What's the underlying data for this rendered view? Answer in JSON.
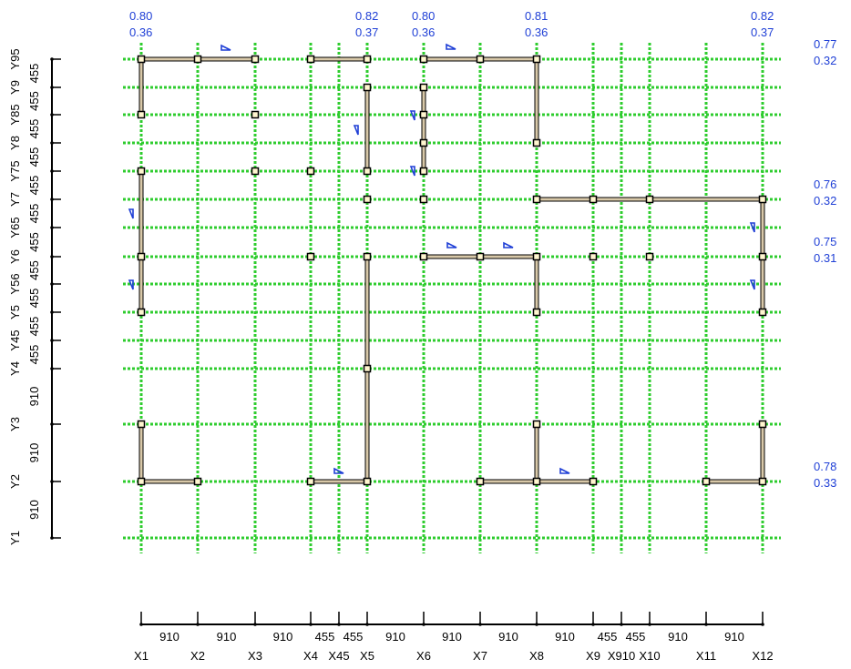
{
  "colors": {
    "grid": "#2ecc2e",
    "wall_fill": "#d8c8a8",
    "wall_edge": "#000000",
    "node_fill": "#fff6d0",
    "ratio_text": "#1f3fd6",
    "marker": "#1f3fd6"
  },
  "x_axis": {
    "labels": [
      "X1",
      "X2",
      "X3",
      "X4",
      "X45",
      "X5",
      "X6",
      "X7",
      "X8",
      "X9",
      "X910",
      "X10",
      "X11",
      "X12"
    ],
    "spans": [
      "910",
      "910",
      "910",
      "455",
      "455",
      "910",
      "910",
      "910",
      "910",
      "455",
      "455",
      "910",
      "910"
    ]
  },
  "y_axis": {
    "labels": [
      "Y1",
      "Y2",
      "Y3",
      "Y4",
      "Y45",
      "Y5",
      "Y56",
      "Y6",
      "Y65",
      "Y7",
      "Y75",
      "Y8",
      "Y85",
      "Y9",
      "Y95"
    ],
    "spans": [
      "910",
      "910",
      "910",
      "455",
      "455",
      "455",
      "455",
      "455",
      "455",
      "455",
      "455",
      "455",
      "455",
      "455"
    ]
  },
  "top_ratios": [
    {
      "x_label": "X1",
      "top": "0.80",
      "bottom": "0.36"
    },
    {
      "x_label": "X5",
      "top": "0.82",
      "bottom": "0.37"
    },
    {
      "x_label": "X6",
      "top": "0.80",
      "bottom": "0.36"
    },
    {
      "x_label": "X8",
      "top": "0.81",
      "bottom": "0.36"
    },
    {
      "x_label": "X12",
      "top": "0.82",
      "bottom": "0.37"
    }
  ],
  "right_ratios": [
    {
      "y_label": "Y95",
      "top": "0.77",
      "bottom": "0.32"
    },
    {
      "y_label": "Y7",
      "top": "0.76",
      "bottom": "0.32"
    },
    {
      "y_label": "Y6",
      "top": "0.75",
      "bottom": "0.31"
    },
    {
      "y_label": "Y2",
      "top": "0.78",
      "bottom": "0.33"
    }
  ]
}
